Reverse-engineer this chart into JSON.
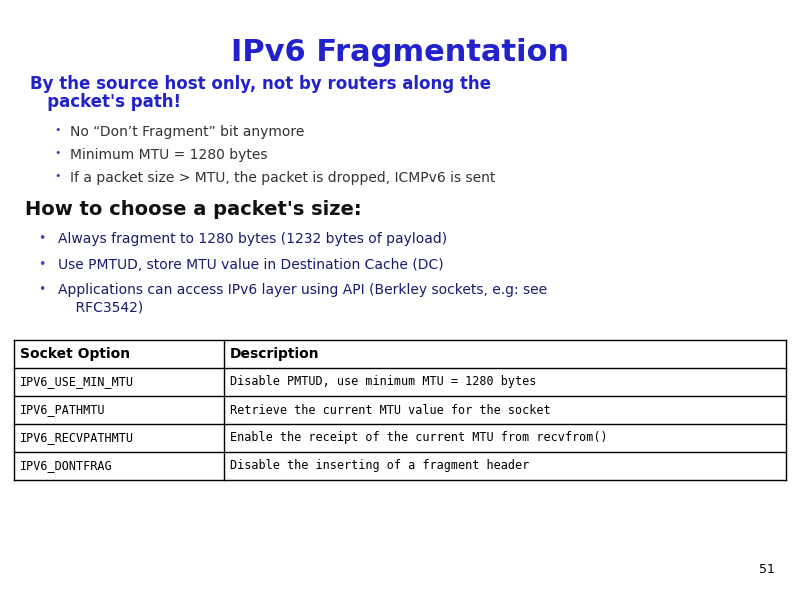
{
  "title": "IPv6 Fragmentation",
  "title_color": "#2222CC",
  "title_fontsize": 22,
  "subtitle_line1": "By the source host only, not by routers along the",
  "subtitle_line2": "   packet's path!",
  "subtitle_color": "#2222CC",
  "subtitle_fontsize": 12,
  "sub_bullet_color": "#4444BB",
  "sub_bullets": [
    "No “Don’t Fragment” bit anymore",
    "Minimum MTU = 1280 bytes",
    "If a packet size > MTU, the packet is dropped, ICMPv6 is sent"
  ],
  "section2_title": "How to choose a packet's size:",
  "section2_color": "#111111",
  "section2_fontsize": 14,
  "main_bullet_color": "#1a1a6e",
  "main_bullets": [
    "Always fragment to 1280 bytes (1232 bytes of payload)",
    "Use PMTUD, store MTU value in Destination Cache (DC)",
    "Applications can access IPv6 layer using API (Berkley sockets, e.g: see\n    RFC3542)"
  ],
  "table_headers": [
    "Socket Option",
    "Description"
  ],
  "table_rows": [
    [
      "IPV6_USE_MIN_MTU",
      "Disable PMTUD, use minimum MTU = 1280 bytes"
    ],
    [
      "IPV6_PATHMTU",
      "Retrieve the current MTU value for the socket"
    ],
    [
      "IPV6_RECVPATHMTU",
      "Enable the receipt of the current MTU from recvfrom()"
    ],
    [
      "IPV6_DONTFRAG",
      "Disable the inserting of a fragment header"
    ]
  ],
  "slide_number": "51",
  "background_color": "#FFFFFF"
}
